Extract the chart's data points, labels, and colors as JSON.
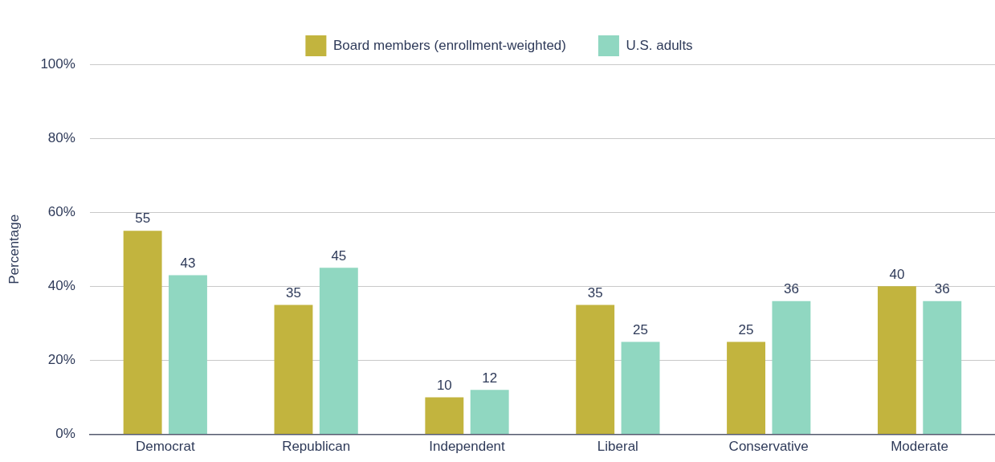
{
  "chart_data": {
    "type": "bar",
    "ylabel": "Percentage",
    "categories": [
      "Democrat",
      "Republican",
      "Independent",
      "Liberal",
      "Conservative",
      "Moderate"
    ],
    "series": [
      {
        "name": "Board members (enrollment-weighted)",
        "color": "#c2b43e",
        "values": [
          55,
          35,
          10,
          35,
          25,
          40
        ]
      },
      {
        "name": "U.S. adults",
        "color": "#90d7c1",
        "values": [
          43,
          45,
          12,
          25,
          36,
          36
        ]
      }
    ],
    "ylim": [
      0,
      100
    ],
    "yticks": [
      {
        "value": 0,
        "label": "0%"
      },
      {
        "value": 20,
        "label": "20%"
      },
      {
        "value": 40,
        "label": "40%"
      },
      {
        "value": 60,
        "label": "60%"
      },
      {
        "value": 80,
        "label": "80%"
      },
      {
        "value": 100,
        "label": "100%"
      }
    ],
    "grid": "y",
    "legend": "top",
    "data_labels": true
  }
}
